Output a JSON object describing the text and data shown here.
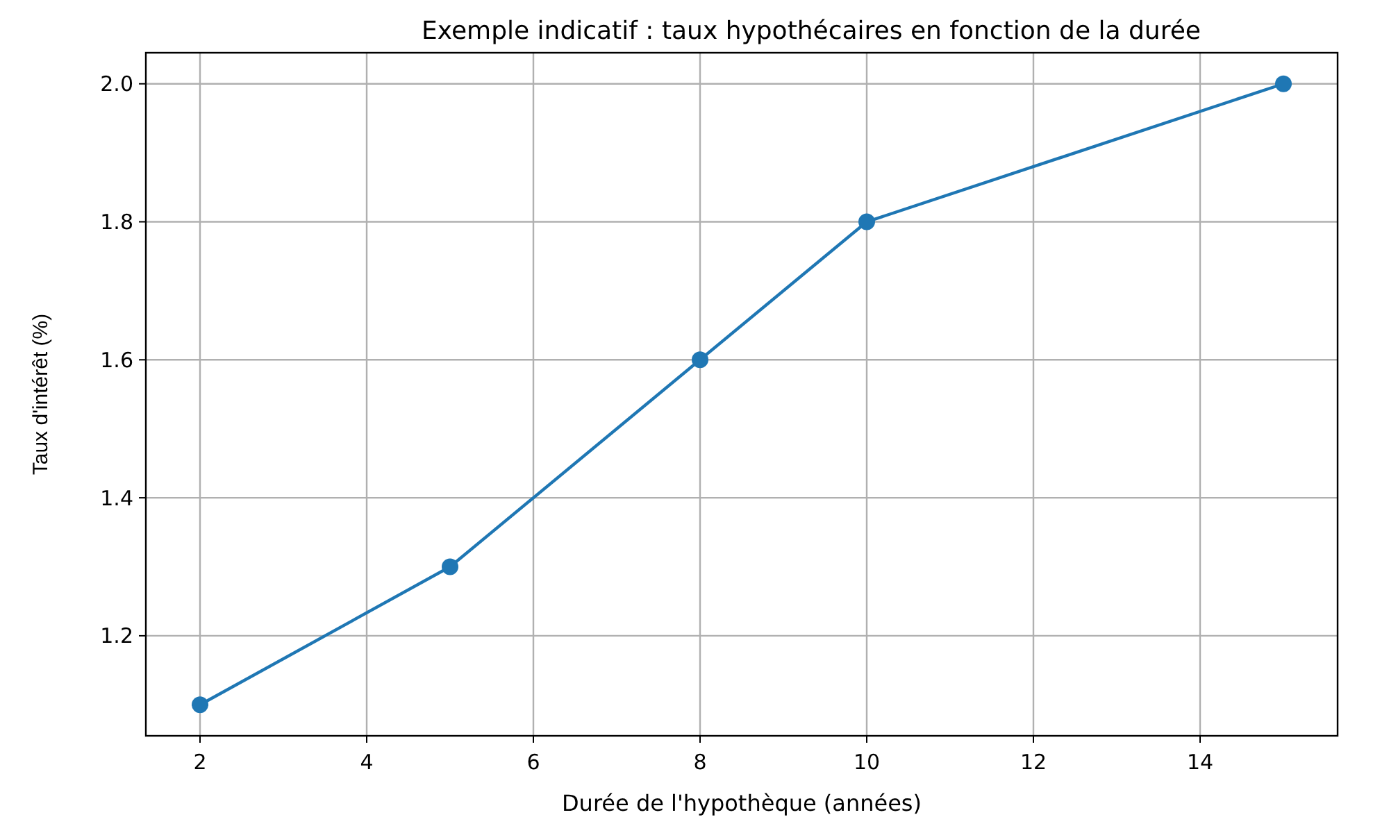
{
  "chart_data": {
    "type": "line",
    "title": "Exemple indicatif : taux hypothécaires en fonction de la durée",
    "xlabel": "Durée de l'hypothèque (années)",
    "ylabel": "Taux d'intérêt (%)",
    "x": [
      2,
      5,
      8,
      10,
      15
    ],
    "series": [
      {
        "color": "#1f77b4",
        "values": [
          1.1,
          1.3,
          1.6,
          1.8,
          2.0
        ]
      }
    ],
    "xlim": [
      1.35,
      15.65
    ],
    "xticks": [
      2,
      4,
      6,
      8,
      10,
      12,
      14
    ],
    "ylim": [
      1.055,
      2.045
    ],
    "yticks": [
      1.2,
      1.4,
      1.6,
      1.8,
      {
        "value": 2,
        "label": "2.0"
      }
    ],
    "grid": true,
    "marker": "circle",
    "line_style": "solid"
  }
}
